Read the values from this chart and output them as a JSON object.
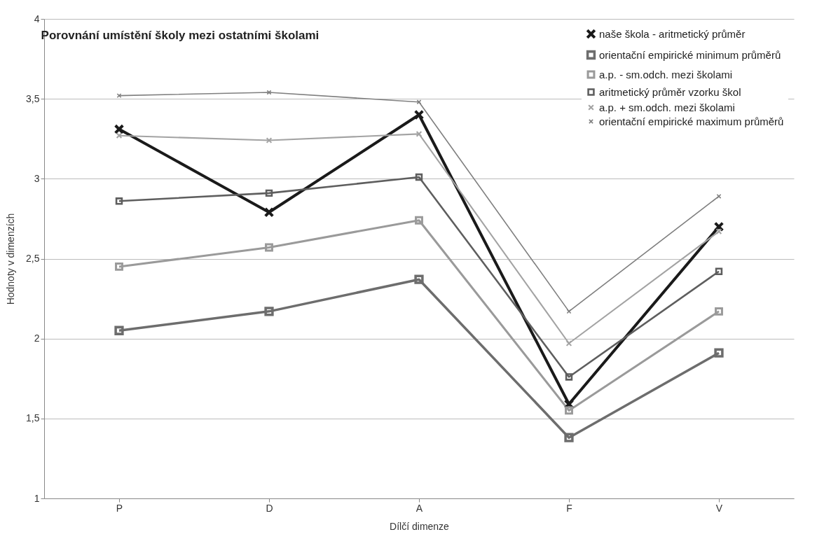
{
  "chart_data": {
    "type": "line",
    "title": "Porovnání umístění školy mezi ostatními školami",
    "xlabel": "Dílčí dimenze",
    "ylabel": "Hodnoty v dimenzích",
    "categories": [
      "P",
      "D",
      "A",
      "F",
      "V"
    ],
    "ylim": [
      1,
      4
    ],
    "yticks": [
      1,
      {
        "value": 1.5,
        "label": "1,5"
      },
      2,
      {
        "value": 2.5,
        "label": "2,5"
      },
      3,
      {
        "value": 3.5,
        "label": "3,5"
      },
      4
    ],
    "grid": "y",
    "legend": "top right",
    "series": [
      {
        "name": "naše škola - aritmetický průměr",
        "color": "#1a1a1a",
        "marker": "cross",
        "values": [
          3.31,
          2.79,
          3.4,
          1.59,
          2.7
        ]
      },
      {
        "name": "orientační empirické minimum průměrů",
        "color": "#6d6d6d",
        "marker": "square",
        "values": [
          2.05,
          2.17,
          2.37,
          1.38,
          1.91
        ]
      },
      {
        "name": "a.p. - sm.odch. mezi školami",
        "color": "#9a9a9a",
        "marker": "square",
        "values": [
          2.45,
          2.57,
          2.74,
          1.55,
          2.17
        ]
      },
      {
        "name": "aritmetický průměr vzorku škol",
        "color": "#5e5e5e",
        "marker": "square",
        "values": [
          2.86,
          2.91,
          3.01,
          1.76,
          2.42
        ]
      },
      {
        "name": "a.p. + sm.odch. mezi školami",
        "color": "#a3a3a3",
        "marker": "cross",
        "values": [
          3.27,
          3.24,
          3.28,
          1.97,
          2.67
        ]
      },
      {
        "name": "orientační empirické maximum průměrů",
        "color": "#7f7f7f",
        "marker": "cross",
        "values": [
          3.52,
          3.54,
          3.48,
          2.17,
          2.89
        ]
      }
    ]
  }
}
